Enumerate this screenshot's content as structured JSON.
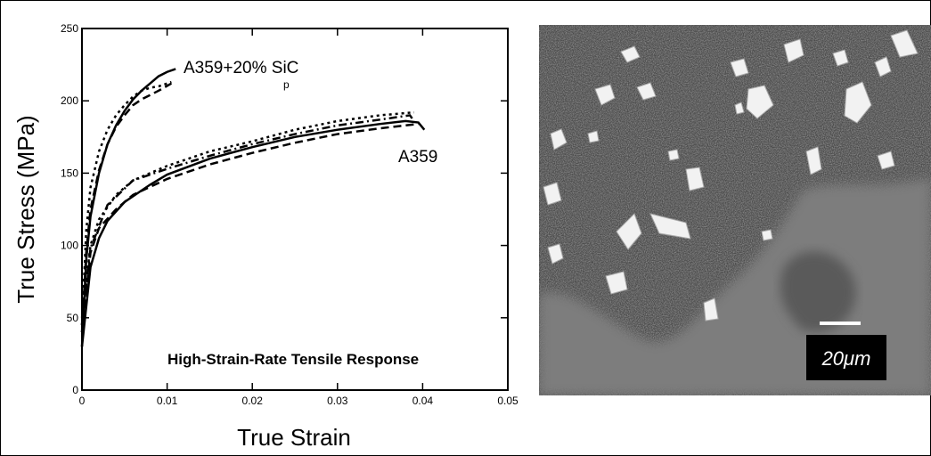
{
  "chart_data": {
    "type": "line",
    "title": "High-Strain-Rate Tensile Response",
    "x_label": "True Strain",
    "y_label": "True Stress (MPa)",
    "annotations": [
      {
        "text": "A359+20% SiC",
        "subscript": "p"
      },
      {
        "text": "A359"
      }
    ],
    "xlim": [
      0,
      0.05
    ],
    "xticks": [
      0,
      0.01,
      0.02,
      0.03,
      0.04,
      0.05
    ],
    "ylim": [
      0,
      250
    ],
    "yticks": [
      0,
      50,
      100,
      150,
      200,
      250
    ],
    "grid": false,
    "series": [
      {
        "color": "#000000",
        "dash": "solid",
        "x": [
          0,
          0.0005,
          0.001,
          0.002,
          0.003,
          0.004,
          0.005,
          0.006,
          0.007,
          0.008,
          0.009,
          0.01,
          0.011
        ],
        "values": [
          30,
          90,
          120,
          150,
          170,
          183,
          193,
          201,
          207,
          212,
          217,
          220,
          222
        ]
      },
      {
        "color": "#000000",
        "dash": "dashed",
        "x": [
          0,
          0.0005,
          0.001,
          0.002,
          0.003,
          0.004,
          0.005,
          0.006,
          0.007,
          0.008,
          0.009,
          0.0105
        ],
        "values": [
          40,
          95,
          125,
          152,
          170,
          182,
          190,
          197,
          201,
          204,
          207,
          212
        ]
      },
      {
        "color": "#000000",
        "dash": "dotted",
        "x": [
          0,
          0.0005,
          0.001,
          0.002,
          0.003,
          0.004,
          0.005,
          0.006,
          0.007,
          0.008,
          0.009,
          0.0105
        ],
        "values": [
          45,
          110,
          140,
          165,
          180,
          190,
          197,
          203,
          207,
          209,
          210,
          213
        ]
      },
      {
        "color": "#000000",
        "dash": "solid",
        "x": [
          0,
          0.001,
          0.002,
          0.003,
          0.005,
          0.008,
          0.01,
          0.015,
          0.02,
          0.025,
          0.03,
          0.035,
          0.038,
          0.0395,
          0.0402
        ],
        "values": [
          30,
          85,
          105,
          117,
          130,
          142,
          149,
          160,
          168,
          175,
          180,
          184,
          186,
          185,
          180
        ]
      },
      {
        "color": "#000000",
        "dash": "dashed",
        "x": [
          0,
          0.001,
          0.002,
          0.004,
          0.006,
          0.01,
          0.015,
          0.02,
          0.025,
          0.03,
          0.035,
          0.0395
        ],
        "values": [
          40,
          95,
          112,
          125,
          135,
          146,
          156,
          164,
          171,
          177,
          181,
          184
        ]
      },
      {
        "color": "#000000",
        "dash": "dotted",
        "x": [
          0,
          0.001,
          0.002,
          0.004,
          0.006,
          0.01,
          0.015,
          0.02,
          0.025,
          0.03,
          0.035,
          0.039
        ],
        "values": [
          50,
          100,
          118,
          135,
          145,
          155,
          165,
          172,
          180,
          186,
          190,
          192
        ]
      },
      {
        "color": "#000000",
        "dash": "dashdot",
        "x": [
          0,
          0.001,
          0.003,
          0.006,
          0.01,
          0.015,
          0.02,
          0.025,
          0.03,
          0.035,
          0.0385,
          0.039
        ],
        "values": [
          45,
          98,
          128,
          145,
          153,
          162,
          170,
          177,
          183,
          187,
          190,
          186
        ]
      }
    ]
  },
  "micrograph": {
    "scale_label": "20μm"
  }
}
